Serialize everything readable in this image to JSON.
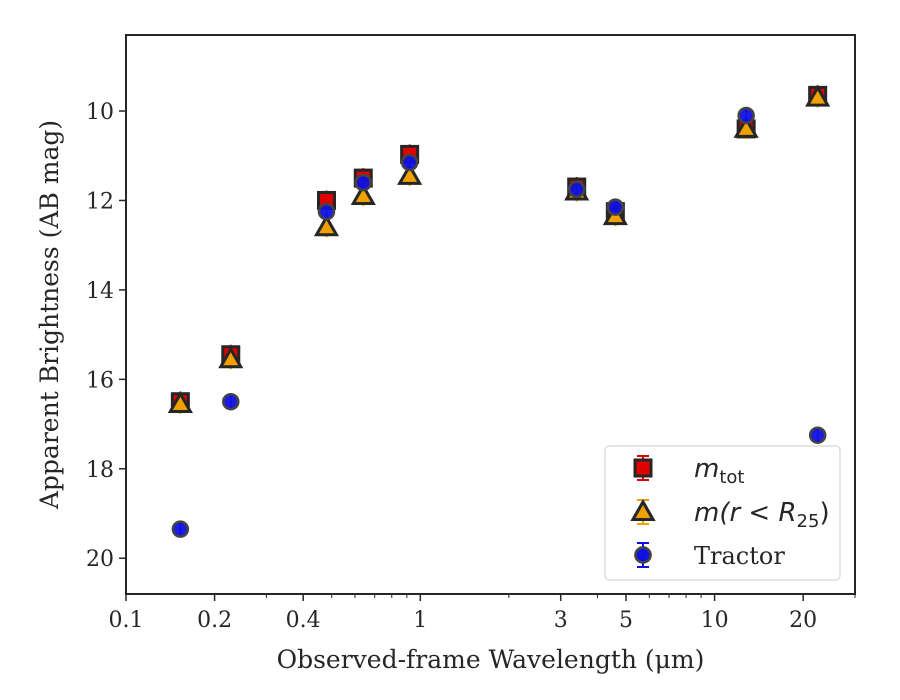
{
  "chart_data": {
    "type": "scatter",
    "title": "",
    "xlabel": "Observed-frame Wavelength (μm)",
    "ylabel": "Apparent Brightness (AB mag)",
    "xscale": "log",
    "xlim": [
      0.1,
      30
    ],
    "ylim": [
      20.8,
      8.3
    ],
    "y_inverted": true,
    "xticks": [
      0.1,
      0.2,
      0.4,
      1,
      3,
      5,
      10,
      20
    ],
    "xtick_labels": [
      "0.1",
      "0.2",
      "0.4",
      "1",
      "3",
      "5",
      "10",
      "20"
    ],
    "yticks": [
      10,
      12,
      14,
      16,
      18,
      20
    ],
    "ytick_labels": [
      "10",
      "12",
      "14",
      "16",
      "18",
      "20"
    ],
    "grid": false,
    "legend_position": "lower-right",
    "series": [
      {
        "name": "m_tot",
        "marker": "square",
        "color": "#e00000",
        "edge_color": "#262626",
        "x": [
          0.153,
          0.227,
          0.48,
          0.64,
          0.92,
          3.4,
          4.6,
          12.8,
          22.4
        ],
        "y": [
          16.5,
          15.45,
          12.0,
          11.5,
          10.97,
          11.7,
          12.25,
          10.4,
          9.65
        ]
      },
      {
        "name": "m(r < R_25)",
        "marker": "triangle",
        "color": "#f0a000",
        "edge_color": "#262626",
        "x": [
          0.153,
          0.227,
          0.48,
          0.64,
          0.92,
          3.4,
          4.6,
          12.8,
          22.4
        ],
        "y": [
          16.55,
          15.55,
          12.6,
          11.9,
          11.45,
          11.8,
          12.35,
          10.4,
          9.7
        ]
      },
      {
        "name": "Tractor",
        "marker": "circle",
        "color": "#1010e0",
        "edge_color": "#444444",
        "x": [
          0.153,
          0.227,
          0.48,
          0.64,
          0.92,
          3.4,
          4.6,
          12.8,
          22.4
        ],
        "y": [
          19.35,
          16.5,
          12.25,
          11.6,
          11.15,
          11.75,
          12.15,
          10.1,
          17.25
        ]
      }
    ],
    "legend": {
      "entries": [
        {
          "series": 0,
          "main": "m",
          "sub": "tot",
          "style": "math-sub"
        },
        {
          "series": 1,
          "main": "m(r < R",
          "sub": "25",
          "tail": ")",
          "style": "math-sub-tail"
        },
        {
          "series": 2,
          "main": "Tractor",
          "style": "plain"
        }
      ]
    }
  }
}
